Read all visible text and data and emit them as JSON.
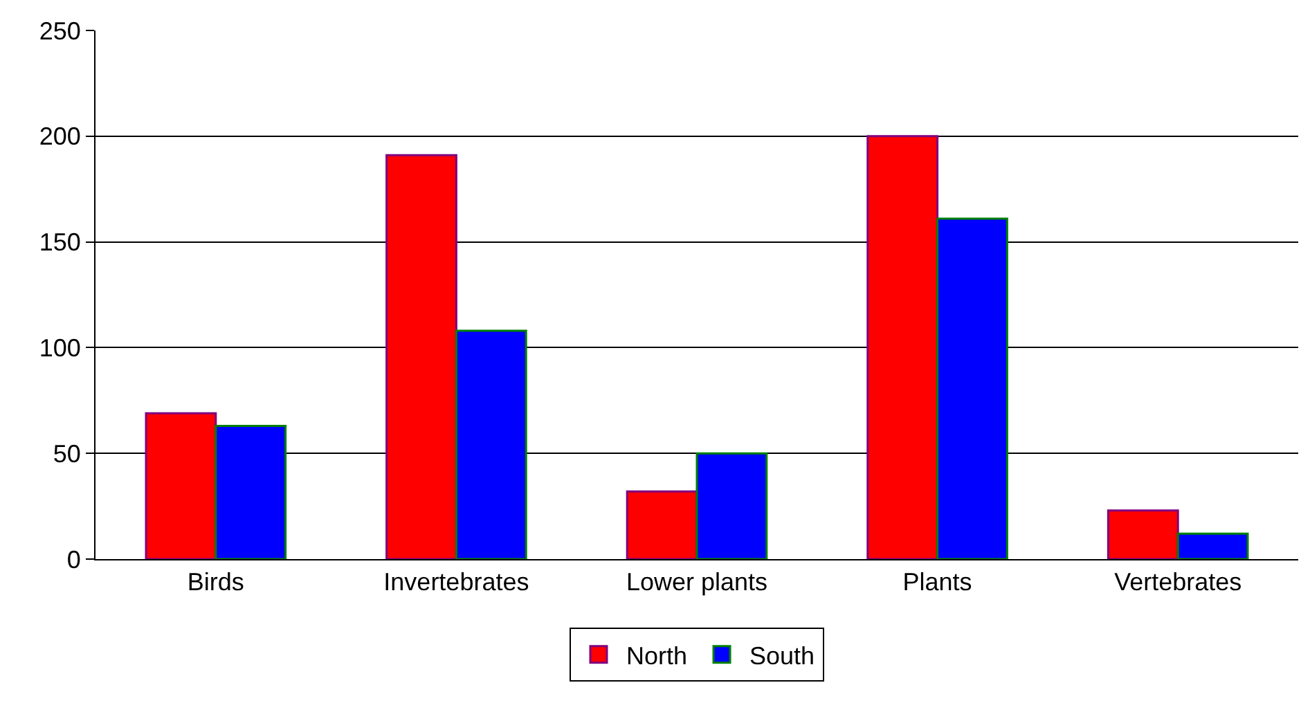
{
  "chart_data": {
    "type": "bar",
    "categories": [
      "Birds",
      "Invertebrates",
      "Lower plants",
      "Plants",
      "Vertebrates"
    ],
    "series": [
      {
        "name": "North",
        "color": "#ff0000",
        "values": [
          69,
          191,
          32,
          200,
          23
        ]
      },
      {
        "name": "South",
        "color": "#0000ff",
        "values": [
          63,
          108,
          50,
          161,
          12
        ]
      }
    ],
    "ylim": [
      0,
      250
    ],
    "yticks": [
      0,
      50,
      100,
      150,
      200,
      250
    ],
    "grid": "y",
    "legend": "bottom"
  }
}
